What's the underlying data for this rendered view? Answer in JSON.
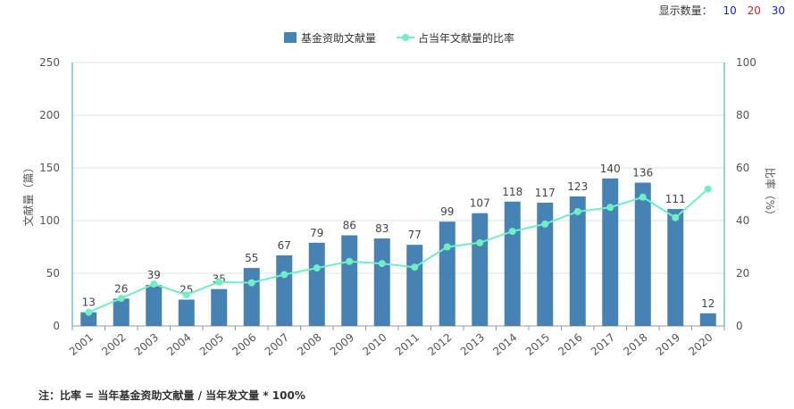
{
  "display_count": {
    "label": "显示数量：",
    "options": [
      {
        "text": "10",
        "color": "#1a1adb"
      },
      {
        "text": "20",
        "color": "#e01e1e"
      },
      {
        "text": "30",
        "color": "#1a1adb"
      }
    ]
  },
  "footnote": "注：比率 = 当年基金资助文献量 / 当年发文量 * 100%",
  "colors": {
    "bar": "#4682b4",
    "line": "#6ef0c3",
    "axis_right": "#27a7a0"
  },
  "chart_data": {
    "type": "bar",
    "categories": [
      "2001",
      "2002",
      "2003",
      "2004",
      "2005",
      "2006",
      "2007",
      "2008",
      "2009",
      "2010",
      "2011",
      "2012",
      "2013",
      "2014",
      "2015",
      "2016",
      "2017",
      "2018",
      "2019",
      "2020"
    ],
    "series": [
      {
        "name": "基金资助文献量",
        "type": "bar",
        "axis": "left",
        "values": [
          13,
          26,
          39,
          25,
          35,
          55,
          67,
          79,
          86,
          83,
          77,
          99,
          107,
          118,
          117,
          123,
          140,
          136,
          111,
          12
        ]
      },
      {
        "name": "占当年文献量的比率",
        "type": "line",
        "axis": "right",
        "values": [
          5.2,
          10.5,
          15.9,
          11.8,
          16.7,
          16.4,
          19.5,
          22,
          24.5,
          23.7,
          22.3,
          30,
          31.6,
          35.9,
          38.7,
          43.4,
          45,
          48.9,
          41.1,
          52
        ]
      }
    ],
    "y_left": {
      "label": "文献量（篇）",
      "ylim": [
        0,
        250
      ],
      "ticks": [
        "0",
        "50",
        "100",
        "150",
        "200",
        "250"
      ]
    },
    "y_right": {
      "label": "比率（%）",
      "ylim": [
        0,
        100
      ],
      "ticks": [
        "0",
        "20",
        "40",
        "60",
        "80",
        "100"
      ]
    },
    "legend_position": "top-center",
    "grid": true
  }
}
